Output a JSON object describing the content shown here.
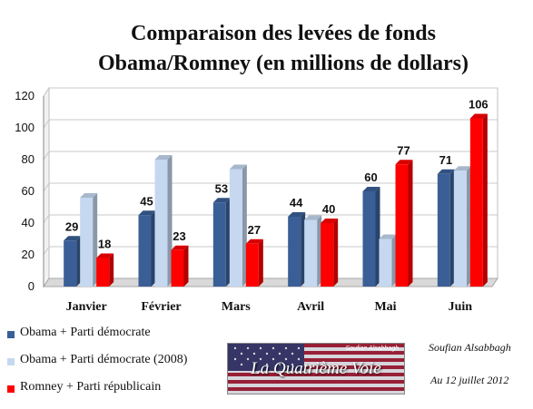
{
  "chart_data": {
    "type": "bar",
    "title_lines": [
      "Comparaison  des levées de fonds",
      "Obama/Romney  (en millions  de dollars)"
    ],
    "categories": [
      "Janvier",
      "Février",
      "Mars",
      "Avril",
      "Mai",
      "Juin"
    ],
    "ylim": [
      0,
      120
    ],
    "yticks": [
      0,
      20,
      40,
      60,
      80,
      100,
      120
    ],
    "grid": true,
    "legend_position": "bottom-left",
    "series": [
      {
        "name": "Obama + Parti démocrate",
        "values": [
          29,
          45,
          53,
          44,
          60,
          71
        ],
        "labeled": true,
        "color": "#3A5F97"
      },
      {
        "name": "Obama + Parti démocrate (2008)",
        "values": [
          56,
          80,
          74,
          42,
          30,
          73
        ],
        "labeled": false,
        "color": "#C5D8F0"
      },
      {
        "name": "Romney + Parti républicain",
        "values": [
          18,
          23,
          27,
          40,
          77,
          106
        ],
        "labeled": true,
        "color": "#FF0000"
      }
    ]
  },
  "watermark": {
    "title": "La Quatrième Voie",
    "small": "Soufian Alsabbagh"
  },
  "credits": {
    "author": "Soufian  Alsabbagh",
    "date": "Au 12 juillet 2012"
  }
}
